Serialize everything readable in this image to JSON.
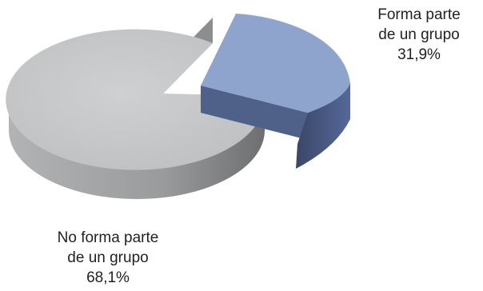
{
  "chart_data": {
    "type": "pie",
    "style": "3d-exploded",
    "slices": [
      {
        "key": "forma",
        "value": 31.9,
        "label_lines": [
          "Forma parte",
          "de un grupo",
          "31,9%"
        ],
        "top_color": "#8fa4cd",
        "side_color": "#4f6189",
        "exploded": true
      },
      {
        "key": "no_forma",
        "value": 68.1,
        "label_lines": [
          "No forma parte",
          "de un grupo",
          "68,1%"
        ],
        "top_color": "#c7c8c9",
        "side_color": "#8c8d8e",
        "exploded": false
      }
    ]
  }
}
